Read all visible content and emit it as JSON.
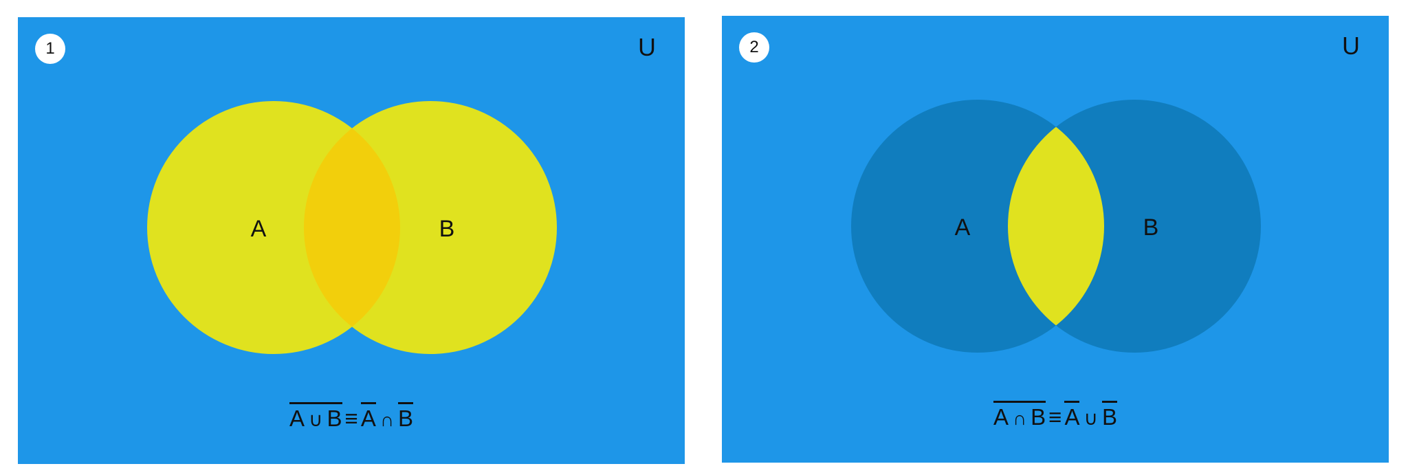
{
  "panels": [
    {
      "number": "1",
      "universe_label": "U",
      "set_a_label": "A",
      "set_b_label": "B",
      "formula": {
        "lhs_a": "A",
        "lhs_op": "∪",
        "lhs_b": "B",
        "equiv": "≡",
        "rhs_a": "A",
        "rhs_op": "∩",
        "rhs_b": "B"
      },
      "colors": {
        "universe": "#1e96e8",
        "set_fill": "#e0e21f",
        "intersection": "#f2cf0c"
      }
    },
    {
      "number": "2",
      "universe_label": "U",
      "set_a_label": "A",
      "set_b_label": "B",
      "formula": {
        "lhs_a": "A",
        "lhs_op": "∩",
        "lhs_b": "B",
        "equiv": "≡",
        "rhs_a": "A",
        "rhs_op": "∪",
        "rhs_b": "B"
      },
      "colors": {
        "universe": "#1e96e8",
        "set_fill": "#107dbe",
        "intersection": "#e0e21f"
      }
    }
  ]
}
